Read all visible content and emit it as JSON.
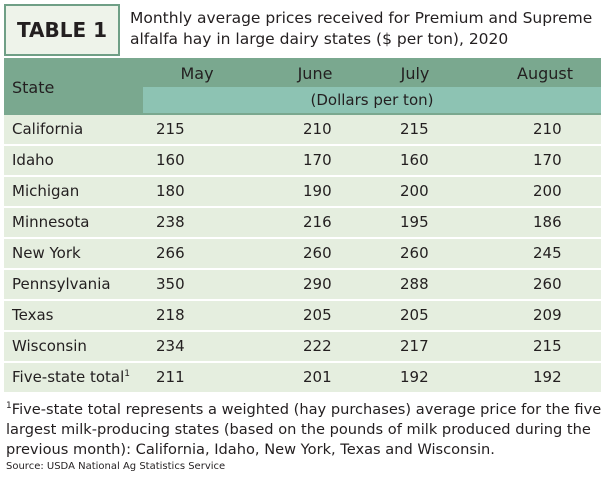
{
  "header": {
    "label": "TABLE 1",
    "title": "Monthly average prices received for Premium and Supreme alfalfa hay in large dairy states ($ per ton), 2020"
  },
  "table": {
    "columns": [
      "State",
      "May",
      "June",
      "July",
      "August"
    ],
    "unit": "(Dollars per ton)",
    "rows": [
      {
        "state": "California",
        "values": [
          215,
          210,
          215,
          210
        ]
      },
      {
        "state": "Idaho",
        "values": [
          160,
          170,
          160,
          170
        ]
      },
      {
        "state": "Michigan",
        "values": [
          180,
          190,
          200,
          200
        ]
      },
      {
        "state": "Minnesota",
        "values": [
          238,
          216,
          195,
          186
        ]
      },
      {
        "state": "New York",
        "values": [
          266,
          260,
          260,
          245
        ]
      },
      {
        "state": "Pennsylvania",
        "values": [
          350,
          290,
          288,
          260
        ]
      },
      {
        "state": "Texas",
        "values": [
          218,
          205,
          205,
          209
        ]
      },
      {
        "state": "Wisconsin",
        "values": [
          234,
          222,
          217,
          215
        ]
      },
      {
        "state": "Five-state total",
        "marker": "1",
        "values": [
          211,
          201,
          192,
          192
        ]
      }
    ]
  },
  "footnote": {
    "marker": "1",
    "text": "Five-state total represents a weighted (hay purchases) average price for the five largest milk-producing states (based on the pounds of milk produced during the previous month): California, Idaho, New York, Texas and Wisconsin."
  },
  "source": "Source: USDA National Ag Statistics Service"
}
